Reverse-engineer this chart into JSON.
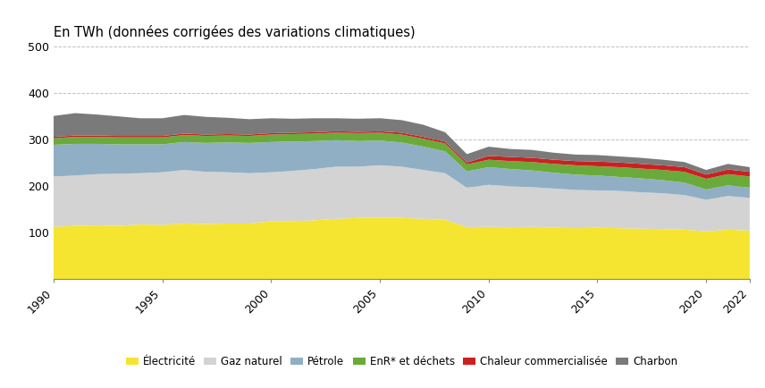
{
  "years": [
    1990,
    1991,
    1992,
    1993,
    1994,
    1995,
    1996,
    1997,
    1998,
    1999,
    2000,
    2001,
    2002,
    2003,
    2004,
    2005,
    2006,
    2007,
    2008,
    2009,
    2010,
    2011,
    2012,
    2013,
    2014,
    2015,
    2016,
    2017,
    2018,
    2019,
    2020,
    2021,
    2022
  ],
  "electricite": [
    113,
    115,
    116,
    115,
    118,
    117,
    120,
    119,
    120,
    120,
    125,
    125,
    127,
    130,
    132,
    133,
    132,
    130,
    128,
    112,
    113,
    112,
    113,
    111,
    110,
    111,
    110,
    109,
    108,
    107,
    103,
    107,
    105
  ],
  "gaz_naturel": [
    108,
    108,
    110,
    112,
    110,
    113,
    115,
    112,
    110,
    108,
    105,
    108,
    110,
    112,
    110,
    112,
    110,
    105,
    100,
    85,
    90,
    88,
    85,
    84,
    82,
    80,
    80,
    78,
    77,
    74,
    68,
    72,
    70
  ],
  "petrole": [
    68,
    68,
    65,
    63,
    62,
    60,
    60,
    62,
    64,
    65,
    65,
    63,
    60,
    57,
    55,
    53,
    52,
    50,
    47,
    35,
    38,
    37,
    36,
    34,
    33,
    32,
    30,
    30,
    28,
    27,
    22,
    23,
    22
  ],
  "enr_dechets": [
    14,
    15,
    15,
    15,
    15,
    15,
    15,
    15,
    15,
    15,
    16,
    16,
    16,
    16,
    17,
    17,
    17,
    17,
    17,
    15,
    16,
    17,
    18,
    19,
    20,
    20,
    21,
    21,
    22,
    23,
    23,
    24,
    24
  ],
  "chaleur": [
    3,
    3,
    3,
    3,
    3,
    3,
    3,
    3,
    3,
    3,
    3,
    3,
    3,
    3,
    3,
    3,
    4,
    4,
    4,
    4,
    8,
    9,
    9,
    9,
    9,
    10,
    10,
    10,
    10,
    10,
    9,
    10,
    10
  ],
  "charbon": [
    45,
    48,
    45,
    42,
    38,
    38,
    40,
    38,
    35,
    33,
    32,
    30,
    30,
    28,
    28,
    28,
    27,
    26,
    20,
    18,
    20,
    17,
    17,
    15,
    14,
    14,
    13,
    13,
    12,
    11,
    10,
    12,
    10
  ],
  "colors": {
    "electricite": "#f5e530",
    "gaz_naturel": "#d3d3d3",
    "petrole": "#90afc5",
    "enr_dechets": "#6aaa3a",
    "chaleur": "#cc2020",
    "charbon": "#7a7a7a"
  },
  "title": "En TWh (données corrigées des variations climatiques)",
  "ylim": [
    0,
    500
  ],
  "yticks": [
    0,
    100,
    200,
    300,
    400,
    500
  ],
  "xticks": [
    1990,
    1995,
    2000,
    2005,
    2010,
    2015,
    2020,
    2022
  ],
  "legend_labels": [
    "Électricité",
    "Gaz naturel",
    "Pétrole",
    "EnR* et déchets",
    "Chaleur commercialisée",
    "Charbon"
  ],
  "background_color": "#ffffff",
  "grid_color": "#b0b0b0"
}
